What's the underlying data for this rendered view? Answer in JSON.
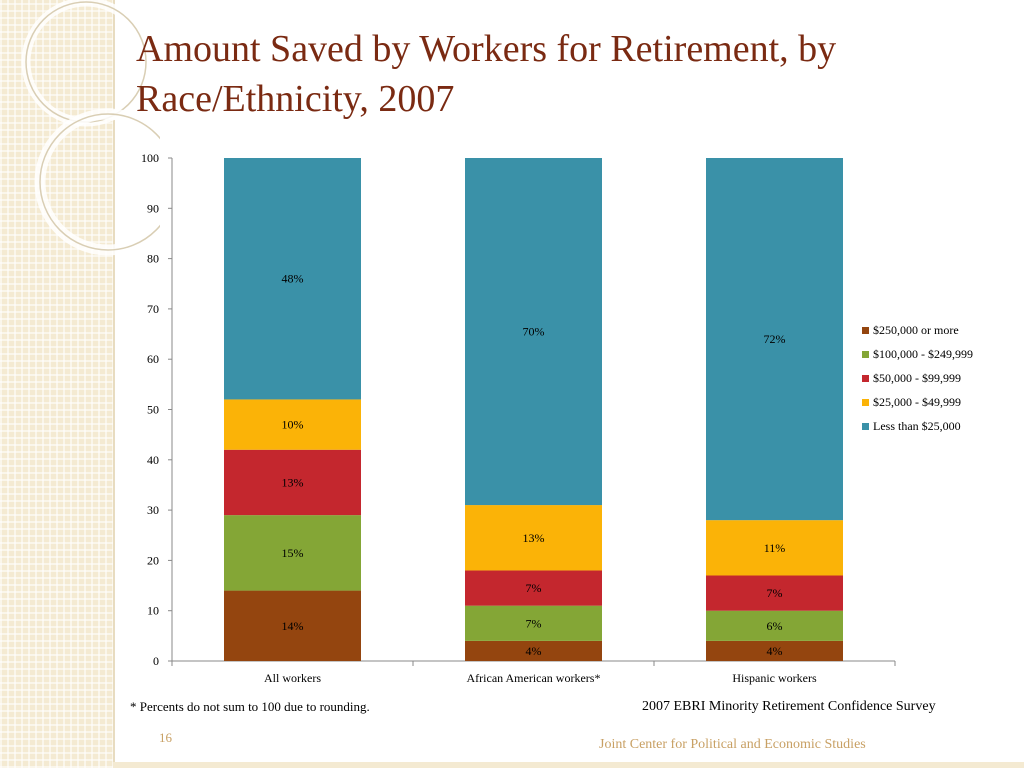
{
  "title": "Amount Saved by Workers for Retirement, by Race/Ethnicity, 2007",
  "footnote": "* Percents do not sum to 100 due to rounding.",
  "source": "2007 EBRI Minority Retirement Confidence Survey",
  "page_number": "16",
  "organization": "Joint Center for Political and Economic Studies",
  "chart_data": {
    "type": "bar",
    "stacked": true,
    "categories": [
      "All workers",
      "African American workers*",
      "Hispanic workers"
    ],
    "series": [
      {
        "name": "$250,000 or more",
        "color": "#94450f",
        "values": [
          14,
          4,
          4
        ],
        "labels": [
          "14%",
          "4%",
          "4%"
        ]
      },
      {
        "name": "$100,000 - $249,999",
        "color": "#84a636",
        "values": [
          15,
          7,
          6
        ],
        "labels": [
          "15%",
          "7%",
          "6%"
        ]
      },
      {
        "name": "$50,000 - $99,999",
        "color": "#c4272e",
        "values": [
          13,
          7,
          7
        ],
        "labels": [
          "13%",
          "7%",
          "7%"
        ]
      },
      {
        "name": "$25,000 - $49,999",
        "color": "#fbb307",
        "values": [
          10,
          13,
          11
        ],
        "labels": [
          "10%",
          "13%",
          "11%"
        ]
      },
      {
        "name": "Less than $25,000",
        "color": "#3a91a8",
        "values": [
          48,
          70,
          72
        ],
        "labels": [
          "48%",
          "70%",
          "72%"
        ]
      }
    ],
    "ylim": [
      0,
      100
    ],
    "yticks": [
      "0",
      "10",
      "20",
      "30",
      "40",
      "50",
      "60",
      "70",
      "80",
      "90",
      "100"
    ],
    "grid": false,
    "legend_position": "right",
    "xlabel": "",
    "ylabel": ""
  }
}
